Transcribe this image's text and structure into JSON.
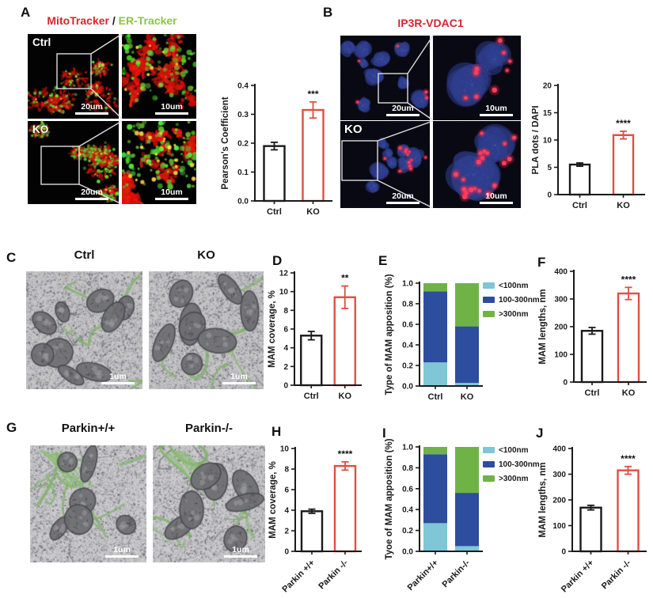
{
  "colors": {
    "black": "#1a1a1a",
    "red": "#df4f44",
    "title_red": "#d7262c",
    "title_green": "#8dc63f",
    "stack_lt100": "#7fc6d6",
    "stack_100_300": "#2d4d9e",
    "stack_gt300": "#6fb347"
  },
  "panels": {
    "A": {
      "label": "A",
      "title": {
        "part1": "MitoTracker",
        "separator": " / ",
        "part2": "ER-Tracker"
      },
      "images": {
        "ctrl_label": "Ctrl",
        "ko_label": "KO",
        "scale_overview": "20um",
        "scale_zoom": "10um"
      }
    },
    "B": {
      "label": "B",
      "title": "IP3R-VDAC1",
      "images": {
        "ko_label": "KO",
        "scale_overview": "20um",
        "scale_zoom": "10um"
      }
    },
    "C": {
      "label": "C",
      "col_titles": [
        "Ctrl",
        "KO"
      ],
      "scale": "1um"
    },
    "D": {
      "label": "D"
    },
    "E": {
      "label": "E"
    },
    "F": {
      "label": "F"
    },
    "G": {
      "label": "G",
      "col_titles": [
        "Parkin+/+",
        "Parkin-/-"
      ],
      "scale": "1um"
    },
    "H": {
      "label": "H"
    },
    "I": {
      "label": "I"
    },
    "J": {
      "label": "J"
    }
  },
  "chart_data": [
    {
      "panel": "A",
      "type": "bar",
      "title": "",
      "ylabel": "Pearson's Coefficient",
      "xlabel": "",
      "categories": [
        "Ctrl",
        "KO"
      ],
      "values": [
        0.19,
        0.315
      ],
      "errors": [
        0.013,
        0.028
      ],
      "bar_colors": [
        "black",
        "red"
      ],
      "significance": {
        "label": "***",
        "index": 1
      },
      "ylim": [
        0,
        0.4
      ],
      "yticks": [
        0,
        0.1,
        0.2,
        0.3,
        0.4
      ]
    },
    {
      "panel": "B",
      "type": "bar",
      "title": "",
      "ylabel": "PLA dots / DAPI",
      "xlabel": "",
      "categories": [
        "Ctrl",
        "KO"
      ],
      "values": [
        5.5,
        10.9
      ],
      "errors": [
        0.3,
        0.7
      ],
      "bar_colors": [
        "black",
        "red"
      ],
      "significance": {
        "label": "****",
        "index": 1
      },
      "ylim": [
        0,
        20
      ],
      "yticks": [
        0,
        5,
        10,
        15,
        20
      ]
    },
    {
      "panel": "D",
      "type": "bar",
      "title": "",
      "ylabel": "MAM coverage, %",
      "xlabel": "",
      "categories": [
        "Ctrl",
        "KO"
      ],
      "values": [
        5.3,
        9.4
      ],
      "errors": [
        0.45,
        1.2
      ],
      "bar_colors": [
        "black",
        "red"
      ],
      "significance": {
        "label": "**",
        "index": 1
      },
      "ylim": [
        0,
        12
      ],
      "yticks": [
        0,
        2,
        4,
        6,
        8,
        10,
        12
      ]
    },
    {
      "panel": "E",
      "type": "bar",
      "stacked": true,
      "title": "",
      "ylabel": "Type of MAM apposition (%)",
      "xlabel": "",
      "categories": [
        "Ctrl",
        "KO"
      ],
      "series": [
        {
          "name": "<100nm",
          "color": "stack_lt100",
          "values": [
            0.23,
            0.03
          ]
        },
        {
          "name": "100-300nm",
          "color": "stack_100_300",
          "values": [
            0.69,
            0.55
          ]
        },
        {
          "name": ">300nm",
          "color": "stack_gt300",
          "values": [
            0.08,
            0.42
          ]
        }
      ],
      "legend": [
        "<100nm",
        "100-300nm",
        ">300nm"
      ],
      "legend_position": "right",
      "ylim": [
        0,
        1.0
      ],
      "yticks": [
        0,
        0.2,
        0.4,
        0.6,
        0.8,
        1.0
      ]
    },
    {
      "panel": "F",
      "type": "bar",
      "title": "",
      "ylabel": "MAM lengths, nm",
      "xlabel": "",
      "categories": [
        "Ctrl",
        "KO"
      ],
      "values": [
        185,
        320
      ],
      "errors": [
        12,
        22
      ],
      "bar_colors": [
        "black",
        "red"
      ],
      "significance": {
        "label": "****",
        "index": 1
      },
      "ylim": [
        0,
        400
      ],
      "yticks": [
        0,
        100,
        200,
        300,
        400
      ]
    },
    {
      "panel": "H",
      "type": "bar",
      "title": "",
      "ylabel": "MAM coverage, %",
      "xlabel": "",
      "categories": [
        "Parkin +/+",
        "Parkin -/-"
      ],
      "values": [
        3.9,
        8.3
      ],
      "errors": [
        0.2,
        0.4
      ],
      "bar_colors": [
        "black",
        "red"
      ],
      "significance": {
        "label": "****",
        "index": 1
      },
      "ylim": [
        0,
        10
      ],
      "yticks": [
        0,
        2,
        4,
        6,
        8,
        10
      ]
    },
    {
      "panel": "I",
      "type": "bar",
      "stacked": true,
      "title": "",
      "ylabel": "Tyoe of MAM apposition (%)",
      "xlabel": "",
      "categories": [
        "Parkin+/+",
        "Parkin-/-"
      ],
      "series": [
        {
          "name": "<100nm",
          "color": "stack_lt100",
          "values": [
            0.27,
            0.05
          ]
        },
        {
          "name": "100-300nm",
          "color": "stack_100_300",
          "values": [
            0.66,
            0.51
          ]
        },
        {
          "name": ">300nm",
          "color": "stack_gt300",
          "values": [
            0.07,
            0.44
          ]
        }
      ],
      "legend": [
        "<100nm",
        "100-300nm",
        ">300nm"
      ],
      "legend_position": "right",
      "ylim": [
        0,
        1.0
      ],
      "yticks": [
        0,
        0.2,
        0.4,
        0.6,
        0.8,
        1.0
      ]
    },
    {
      "panel": "J",
      "type": "bar",
      "title": "",
      "ylabel": "MAM lengths, nm",
      "xlabel": "",
      "categories": [
        "Parkin +/+",
        "Parkin -/-"
      ],
      "values": [
        170,
        315
      ],
      "errors": [
        9,
        15
      ],
      "bar_colors": [
        "black",
        "red"
      ],
      "significance": {
        "label": "****",
        "index": 1
      },
      "ylim": [
        0,
        400
      ],
      "yticks": [
        0,
        100,
        200,
        300,
        400
      ]
    }
  ]
}
